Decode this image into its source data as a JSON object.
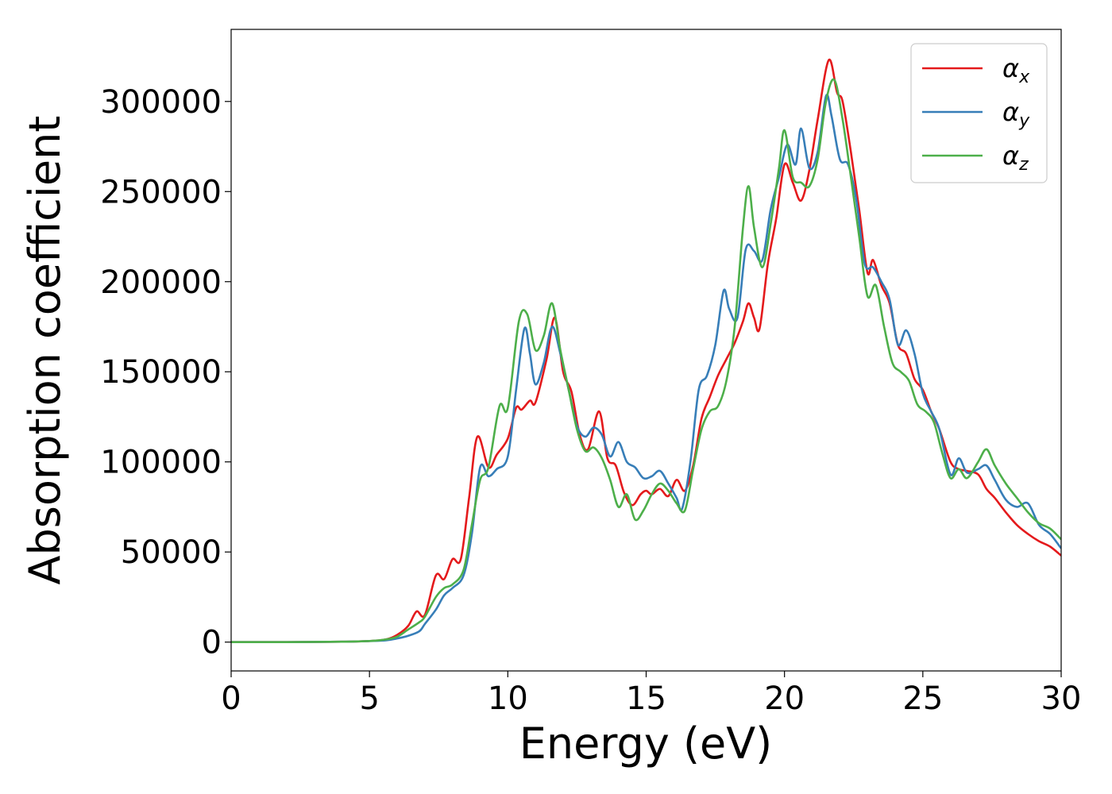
{
  "chart_data": {
    "type": "line",
    "xlabel": "Energy (eV)",
    "ylabel": "Absorption coefficient",
    "xlim": [
      0,
      30
    ],
    "ylim": [
      -16000,
      340000
    ],
    "xticks": [
      0,
      5,
      10,
      15,
      20,
      25,
      30
    ],
    "xtick_labels": [
      "0",
      "5",
      "10",
      "15",
      "20",
      "25",
      "30"
    ],
    "yticks": [
      0,
      50000,
      100000,
      150000,
      200000,
      250000,
      300000
    ],
    "ytick_labels": [
      "0",
      "50000",
      "100000",
      "150000",
      "200000",
      "250000",
      "300000"
    ],
    "grid": false,
    "legend_position": "top-right",
    "series": [
      {
        "name": "αx",
        "symbol": "α",
        "subscript": "x",
        "color": "#e41a1c",
        "points": [
          [
            0,
            0
          ],
          [
            2,
            0
          ],
          [
            4,
            200
          ],
          [
            5,
            600
          ],
          [
            5.6,
            1500
          ],
          [
            6,
            4000
          ],
          [
            6.4,
            9000
          ],
          [
            6.7,
            17000
          ],
          [
            7,
            15000
          ],
          [
            7.4,
            37000
          ],
          [
            7.7,
            35000
          ],
          [
            8,
            46000
          ],
          [
            8.3,
            46000
          ],
          [
            8.6,
            80000
          ],
          [
            8.9,
            114000
          ],
          [
            9.3,
            97000
          ],
          [
            9.6,
            104000
          ],
          [
            10,
            113000
          ],
          [
            10.3,
            130000
          ],
          [
            10.5,
            129000
          ],
          [
            10.8,
            134000
          ],
          [
            11,
            133000
          ],
          [
            11.4,
            157000
          ],
          [
            11.7,
            180000
          ],
          [
            12,
            150000
          ],
          [
            12.3,
            139000
          ],
          [
            12.6,
            115000
          ],
          [
            12.9,
            107000
          ],
          [
            13.3,
            128000
          ],
          [
            13.6,
            102000
          ],
          [
            13.9,
            98000
          ],
          [
            14.2,
            83000
          ],
          [
            14.5,
            76000
          ],
          [
            14.8,
            82000
          ],
          [
            15,
            84000
          ],
          [
            15.2,
            82000
          ],
          [
            15.5,
            85000
          ],
          [
            15.8,
            81000
          ],
          [
            16.1,
            90000
          ],
          [
            16.4,
            84000
          ],
          [
            16.7,
            98000
          ],
          [
            17,
            124000
          ],
          [
            17.3,
            136000
          ],
          [
            17.6,
            148000
          ],
          [
            17.9,
            157000
          ],
          [
            18.2,
            166000
          ],
          [
            18.5,
            178000
          ],
          [
            18.7,
            188000
          ],
          [
            18.9,
            180000
          ],
          [
            19.1,
            174000
          ],
          [
            19.4,
            210000
          ],
          [
            19.7,
            235000
          ],
          [
            20,
            265000
          ],
          [
            20.3,
            255000
          ],
          [
            20.6,
            245000
          ],
          [
            20.9,
            262000
          ],
          [
            21.2,
            290000
          ],
          [
            21.6,
            323000
          ],
          [
            21.9,
            305000
          ],
          [
            22.1,
            300000
          ],
          [
            22.4,
            272000
          ],
          [
            22.7,
            240000
          ],
          [
            23,
            205000
          ],
          [
            23.2,
            212000
          ],
          [
            23.5,
            198000
          ],
          [
            23.8,
            188000
          ],
          [
            24.1,
            165000
          ],
          [
            24.4,
            160000
          ],
          [
            24.7,
            146000
          ],
          [
            25,
            140000
          ],
          [
            25.3,
            128000
          ],
          [
            25.6,
            118000
          ],
          [
            26,
            100000
          ],
          [
            26.3,
            96000
          ],
          [
            26.6,
            95000
          ],
          [
            27,
            93000
          ],
          [
            27.3,
            85000
          ],
          [
            27.6,
            80000
          ],
          [
            28,
            72000
          ],
          [
            28.4,
            65000
          ],
          [
            28.8,
            60000
          ],
          [
            29.2,
            56000
          ],
          [
            29.6,
            53000
          ],
          [
            30,
            48000
          ]
        ]
      },
      {
        "name": "αy",
        "symbol": "α",
        "subscript": "y",
        "color": "#377eb8",
        "points": [
          [
            0,
            0
          ],
          [
            2,
            0
          ],
          [
            4,
            200
          ],
          [
            5,
            600
          ],
          [
            5.6,
            1000
          ],
          [
            6,
            2000
          ],
          [
            6.4,
            3500
          ],
          [
            6.8,
            6000
          ],
          [
            7,
            10000
          ],
          [
            7.4,
            18000
          ],
          [
            7.7,
            26000
          ],
          [
            8,
            30000
          ],
          [
            8.4,
            37000
          ],
          [
            8.7,
            60000
          ],
          [
            9,
            97000
          ],
          [
            9.3,
            92000
          ],
          [
            9.6,
            96000
          ],
          [
            10,
            103000
          ],
          [
            10.3,
            140000
          ],
          [
            10.6,
            174000
          ],
          [
            10.8,
            160000
          ],
          [
            11,
            143000
          ],
          [
            11.3,
            155000
          ],
          [
            11.6,
            175000
          ],
          [
            11.9,
            160000
          ],
          [
            12.2,
            140000
          ],
          [
            12.5,
            120000
          ],
          [
            12.8,
            114000
          ],
          [
            13.1,
            119000
          ],
          [
            13.4,
            115000
          ],
          [
            13.7,
            103000
          ],
          [
            14,
            111000
          ],
          [
            14.3,
            100000
          ],
          [
            14.6,
            97000
          ],
          [
            14.9,
            91000
          ],
          [
            15.2,
            92000
          ],
          [
            15.5,
            95000
          ],
          [
            15.8,
            88000
          ],
          [
            16.1,
            80000
          ],
          [
            16.3,
            74000
          ],
          [
            16.6,
            100000
          ],
          [
            16.9,
            140000
          ],
          [
            17.2,
            148000
          ],
          [
            17.5,
            165000
          ],
          [
            17.8,
            195000
          ],
          [
            18,
            185000
          ],
          [
            18.3,
            180000
          ],
          [
            18.6,
            218000
          ],
          [
            18.9,
            217000
          ],
          [
            19.2,
            212000
          ],
          [
            19.5,
            240000
          ],
          [
            19.8,
            258000
          ],
          [
            20.1,
            276000
          ],
          [
            20.4,
            265000
          ],
          [
            20.6,
            285000
          ],
          [
            20.9,
            263000
          ],
          [
            21.2,
            272000
          ],
          [
            21.5,
            303000
          ],
          [
            21.7,
            292000
          ],
          [
            22,
            268000
          ],
          [
            22.3,
            265000
          ],
          [
            22.6,
            245000
          ],
          [
            22.9,
            210000
          ],
          [
            23.2,
            208000
          ],
          [
            23.5,
            200000
          ],
          [
            23.8,
            190000
          ],
          [
            24.1,
            165000
          ],
          [
            24.4,
            173000
          ],
          [
            24.7,
            160000
          ],
          [
            25,
            138000
          ],
          [
            25.3,
            128000
          ],
          [
            25.6,
            118000
          ],
          [
            26,
            93000
          ],
          [
            26.3,
            102000
          ],
          [
            26.6,
            94000
          ],
          [
            27,
            96000
          ],
          [
            27.3,
            98000
          ],
          [
            27.6,
            90000
          ],
          [
            28,
            79000
          ],
          [
            28.4,
            75000
          ],
          [
            28.8,
            77000
          ],
          [
            29.2,
            65000
          ],
          [
            29.6,
            60000
          ],
          [
            30,
            52000
          ]
        ]
      },
      {
        "name": "αz",
        "symbol": "α",
        "subscript": "z",
        "color": "#4daf4a",
        "points": [
          [
            0,
            0
          ],
          [
            2,
            0
          ],
          [
            4,
            200
          ],
          [
            5,
            600
          ],
          [
            5.6,
            1500
          ],
          [
            6,
            3000
          ],
          [
            6.4,
            7000
          ],
          [
            6.8,
            11000
          ],
          [
            7,
            14000
          ],
          [
            7.4,
            25000
          ],
          [
            7.7,
            30000
          ],
          [
            8,
            32000
          ],
          [
            8.4,
            40000
          ],
          [
            8.7,
            65000
          ],
          [
            9,
            90000
          ],
          [
            9.3,
            97000
          ],
          [
            9.7,
            131000
          ],
          [
            10,
            130000
          ],
          [
            10.4,
            178000
          ],
          [
            10.7,
            182000
          ],
          [
            11,
            162000
          ],
          [
            11.3,
            170000
          ],
          [
            11.6,
            188000
          ],
          [
            11.9,
            162000
          ],
          [
            12.2,
            140000
          ],
          [
            12.5,
            118000
          ],
          [
            12.8,
            106000
          ],
          [
            13.1,
            108000
          ],
          [
            13.4,
            102000
          ],
          [
            13.7,
            90000
          ],
          [
            14,
            75000
          ],
          [
            14.3,
            82000
          ],
          [
            14.6,
            68000
          ],
          [
            14.9,
            73000
          ],
          [
            15.2,
            82000
          ],
          [
            15.5,
            88000
          ],
          [
            15.8,
            84000
          ],
          [
            16.1,
            77000
          ],
          [
            16.4,
            73000
          ],
          [
            16.7,
            96000
          ],
          [
            17,
            118000
          ],
          [
            17.3,
            128000
          ],
          [
            17.6,
            131000
          ],
          [
            17.9,
            145000
          ],
          [
            18.2,
            175000
          ],
          [
            18.5,
            230000
          ],
          [
            18.7,
            253000
          ],
          [
            18.9,
            230000
          ],
          [
            19.2,
            208000
          ],
          [
            19.5,
            232000
          ],
          [
            19.8,
            263000
          ],
          [
            20,
            284000
          ],
          [
            20.3,
            258000
          ],
          [
            20.6,
            255000
          ],
          [
            20.9,
            253000
          ],
          [
            21.2,
            268000
          ],
          [
            21.5,
            300000
          ],
          [
            21.8,
            312000
          ],
          [
            22.1,
            290000
          ],
          [
            22.4,
            258000
          ],
          [
            22.7,
            225000
          ],
          [
            23,
            192000
          ],
          [
            23.3,
            198000
          ],
          [
            23.6,
            175000
          ],
          [
            23.9,
            155000
          ],
          [
            24.2,
            150000
          ],
          [
            24.5,
            145000
          ],
          [
            24.8,
            132000
          ],
          [
            25.1,
            128000
          ],
          [
            25.4,
            122000
          ],
          [
            25.7,
            105000
          ],
          [
            26,
            91000
          ],
          [
            26.3,
            96000
          ],
          [
            26.6,
            91000
          ],
          [
            27,
            100000
          ],
          [
            27.3,
            107000
          ],
          [
            27.6,
            98000
          ],
          [
            28,
            88000
          ],
          [
            28.4,
            80000
          ],
          [
            28.8,
            72000
          ],
          [
            29.2,
            66000
          ],
          [
            29.6,
            63000
          ],
          [
            30,
            57000
          ]
        ]
      }
    ]
  }
}
